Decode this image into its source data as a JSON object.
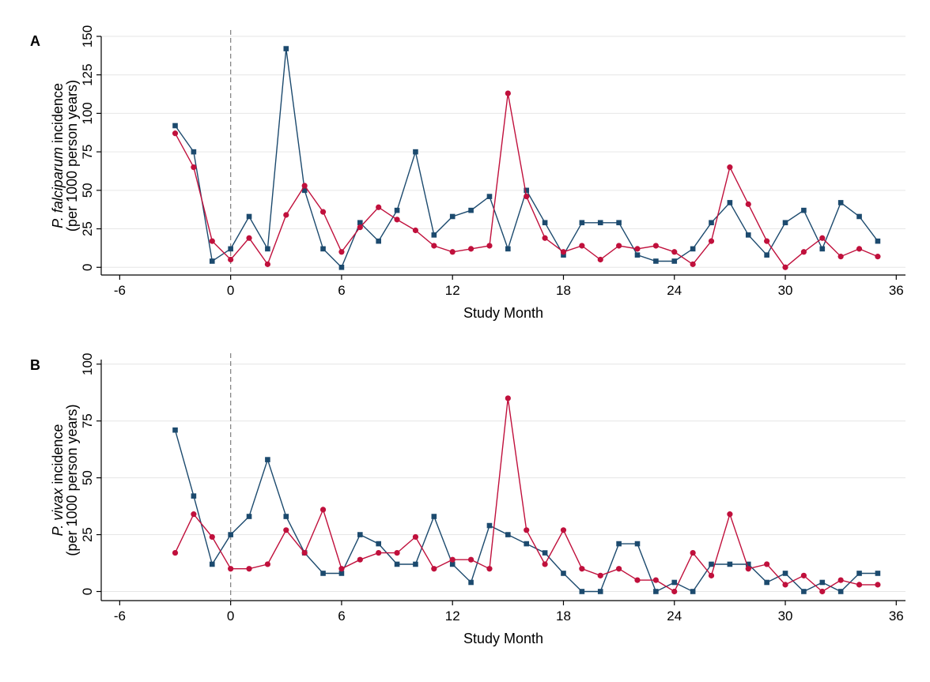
{
  "colors": {
    "series1": "#1c4a6e",
    "series2": "#c0103c",
    "grid": "#e6e6e6",
    "refline": "#888888"
  },
  "chart_data": [
    {
      "type": "line",
      "panel_label": "A",
      "ylabel_italic": "P. falciparum",
      "ylabel_rest": " incidence",
      "ylabel_line2": "(per 1000 person years)",
      "xlabel": "Study Month",
      "xlim": [
        -7,
        36.5
      ],
      "ylim": [
        -5,
        150
      ],
      "xticks": [
        -6,
        0,
        6,
        12,
        18,
        24,
        30,
        36
      ],
      "yticks": [
        0,
        25,
        50,
        75,
        100,
        125,
        150
      ],
      "reference_line_x": 0,
      "grid": true,
      "legend": "none",
      "series": [
        {
          "marker": "square",
          "color": "#1c4a6e",
          "x": [
            -3,
            -2,
            -1,
            0,
            1,
            2,
            3,
            4,
            5,
            6,
            7,
            8,
            9,
            10,
            11,
            12,
            13,
            14,
            15,
            16,
            17,
            18,
            19,
            20,
            21,
            22,
            23,
            24,
            25,
            26,
            27,
            28,
            29,
            30,
            31,
            32,
            33,
            34,
            35
          ],
          "y": [
            92,
            75,
            4,
            12,
            33,
            12,
            142,
            50,
            12,
            0,
            29,
            17,
            37,
            75,
            21,
            33,
            37,
            46,
            12,
            50,
            29,
            8,
            29,
            29,
            29,
            8,
            4,
            4,
            12,
            29,
            42,
            21,
            8,
            29,
            37,
            12,
            42,
            33,
            17
          ]
        },
        {
          "marker": "circle",
          "color": "#c0103c",
          "x": [
            -3,
            -2,
            -1,
            0,
            1,
            2,
            3,
            4,
            5,
            6,
            7,
            8,
            9,
            10,
            11,
            12,
            13,
            14,
            15,
            16,
            17,
            18,
            19,
            20,
            21,
            22,
            23,
            24,
            25,
            26,
            27,
            28,
            29,
            30,
            31,
            32,
            33,
            34,
            35
          ],
          "y": [
            87,
            65,
            17,
            5,
            19,
            2,
            34,
            53,
            36,
            10,
            26,
            39,
            31,
            24,
            14,
            10,
            12,
            14,
            113,
            46,
            19,
            10,
            14,
            5,
            14,
            12,
            14,
            10,
            2,
            17,
            65,
            41,
            17,
            0,
            10,
            19,
            7,
            12,
            7
          ]
        }
      ]
    },
    {
      "type": "line",
      "panel_label": "B",
      "ylabel_italic": "P. vivax",
      "ylabel_rest": " incidence",
      "ylabel_line2": "(per 1000 person years)",
      "xlabel": "Study Month",
      "xlim": [
        -7,
        36.5
      ],
      "ylim": [
        -4,
        102
      ],
      "xticks": [
        -6,
        0,
        6,
        12,
        18,
        24,
        30,
        36
      ],
      "yticks": [
        0,
        25,
        50,
        75,
        100
      ],
      "reference_line_x": 0,
      "grid": true,
      "legend": "none",
      "series": [
        {
          "marker": "square",
          "color": "#1c4a6e",
          "x": [
            -3,
            -2,
            -1,
            0,
            1,
            2,
            3,
            4,
            5,
            6,
            7,
            8,
            9,
            10,
            11,
            12,
            13,
            14,
            15,
            16,
            17,
            18,
            19,
            20,
            21,
            22,
            23,
            24,
            25,
            26,
            27,
            28,
            29,
            30,
            31,
            32,
            33,
            34,
            35
          ],
          "y": [
            71,
            42,
            12,
            25,
            33,
            58,
            33,
            17,
            8,
            8,
            25,
            21,
            12,
            12,
            33,
            12,
            4,
            29,
            25,
            21,
            17,
            8,
            0,
            0,
            21,
            21,
            0,
            4,
            0,
            12,
            12,
            12,
            4,
            8,
            0,
            4,
            0,
            8,
            8
          ]
        },
        {
          "marker": "circle",
          "color": "#c0103c",
          "x": [
            -3,
            -2,
            -1,
            0,
            1,
            2,
            3,
            4,
            5,
            6,
            7,
            8,
            9,
            10,
            11,
            12,
            13,
            14,
            15,
            16,
            17,
            18,
            19,
            20,
            21,
            22,
            23,
            24,
            25,
            26,
            27,
            28,
            29,
            30,
            31,
            32,
            33,
            34,
            35
          ],
          "y": [
            17,
            34,
            24,
            10,
            10,
            12,
            27,
            17,
            36,
            10,
            14,
            17,
            17,
            24,
            10,
            14,
            14,
            10,
            85,
            27,
            12,
            27,
            10,
            7,
            10,
            5,
            5,
            0,
            17,
            7,
            34,
            10,
            12,
            3,
            7,
            0,
            5,
            3,
            3
          ]
        }
      ]
    }
  ]
}
